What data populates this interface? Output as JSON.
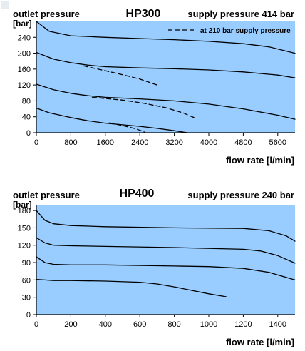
{
  "chart_data": [
    {
      "type": "line",
      "title": "HP300",
      "top_left_label": "outlet pressure",
      "supply_label": "supply pressure 414 bar",
      "ylabel": "[bar]",
      "xlabel": "flow rate [l/min]",
      "xlim": [
        0,
        6000
      ],
      "ylim": [
        0,
        280
      ],
      "xticks": [
        0,
        800,
        1600,
        2400,
        3200,
        4000,
        4800,
        5600
      ],
      "yticks": [
        0,
        40,
        80,
        120,
        160,
        200,
        240
      ],
      "grid": false,
      "background": "#99ccff",
      "legend": {
        "placement": "top-right",
        "label": "at 210 bar supply pressure",
        "style": "dashed"
      },
      "series": [
        {
          "style": "solid",
          "x": [
            0,
            300,
            800,
            1600,
            2400,
            3200,
            4000,
            4800,
            5400,
            6000
          ],
          "y": [
            280,
            255,
            244,
            240,
            237,
            234,
            230,
            224,
            216,
            200
          ]
        },
        {
          "style": "solid",
          "x": [
            0,
            400,
            800,
            1200,
            1600,
            2400,
            3200,
            4000,
            4800,
            5600,
            6000
          ],
          "y": [
            202,
            185,
            176,
            170,
            166,
            163,
            161,
            158,
            153,
            145,
            138
          ]
        },
        {
          "style": "solid",
          "x": [
            0,
            400,
            800,
            1200,
            1600,
            2400,
            3200,
            4000,
            4800,
            5600,
            6000
          ],
          "y": [
            122,
            108,
            99,
            93,
            89,
            85,
            80,
            72,
            60,
            44,
            34
          ]
        },
        {
          "style": "solid",
          "x": [
            0,
            300,
            800,
            1200,
            1600,
            2400,
            2800,
            3200,
            3500
          ],
          "y": [
            62,
            50,
            38,
            30,
            24,
            16,
            11,
            5,
            0
          ]
        },
        {
          "style": "dashed",
          "name": "at 210 bar supply pressure",
          "x": [
            1100,
            1600,
            2000,
            2400,
            2800
          ],
          "y": [
            168,
            156,
            146,
            135,
            120
          ]
        },
        {
          "style": "dashed",
          "name": "at 210 bar supply pressure",
          "x": [
            1300,
            2000,
            2500,
            3000,
            3400,
            3700
          ],
          "y": [
            89,
            82,
            74,
            63,
            50,
            36
          ]
        },
        {
          "style": "dashed",
          "name": "at 210 bar supply pressure",
          "x": [
            1700,
            2000,
            2300,
            2500
          ],
          "y": [
            25,
            18,
            10,
            2
          ]
        }
      ]
    },
    {
      "type": "line",
      "title": "HP400",
      "top_left_label": "outlet pressure",
      "supply_label": "supply pressure 240 bar",
      "ylabel": "[bar]",
      "xlabel": "flow rate [l/min]",
      "xlim": [
        0,
        1500
      ],
      "ylim": [
        0,
        190
      ],
      "xticks": [
        0,
        200,
        400,
        600,
        800,
        1000,
        1200,
        1400
      ],
      "yticks": [
        0,
        30,
        60,
        90,
        120,
        150,
        180
      ],
      "grid": false,
      "background": "#99ccff",
      "series": [
        {
          "style": "solid",
          "x": [
            0,
            50,
            100,
            200,
            400,
            800,
            1200,
            1350,
            1450,
            1500
          ],
          "y": [
            180,
            163,
            157,
            154,
            152,
            150,
            149,
            145,
            136,
            127
          ]
        },
        {
          "style": "solid",
          "x": [
            0,
            50,
            100,
            200,
            400,
            800,
            1200,
            1300,
            1400,
            1500
          ],
          "y": [
            133,
            124,
            120,
            119,
            118,
            116,
            113,
            110,
            102,
            89
          ]
        },
        {
          "style": "solid",
          "x": [
            0,
            50,
            100,
            200,
            400,
            600,
            800,
            1000,
            1200,
            1350,
            1500
          ],
          "y": [
            100,
            90,
            87,
            86,
            86,
            85,
            84,
            83,
            80,
            73,
            60
          ]
        },
        {
          "style": "solid",
          "x": [
            0,
            50,
            100,
            200,
            400,
            600,
            700,
            800,
            900,
            1000,
            1100
          ],
          "y": [
            61,
            60,
            59,
            59,
            58,
            56,
            53,
            48,
            42,
            36,
            31
          ]
        }
      ]
    }
  ]
}
